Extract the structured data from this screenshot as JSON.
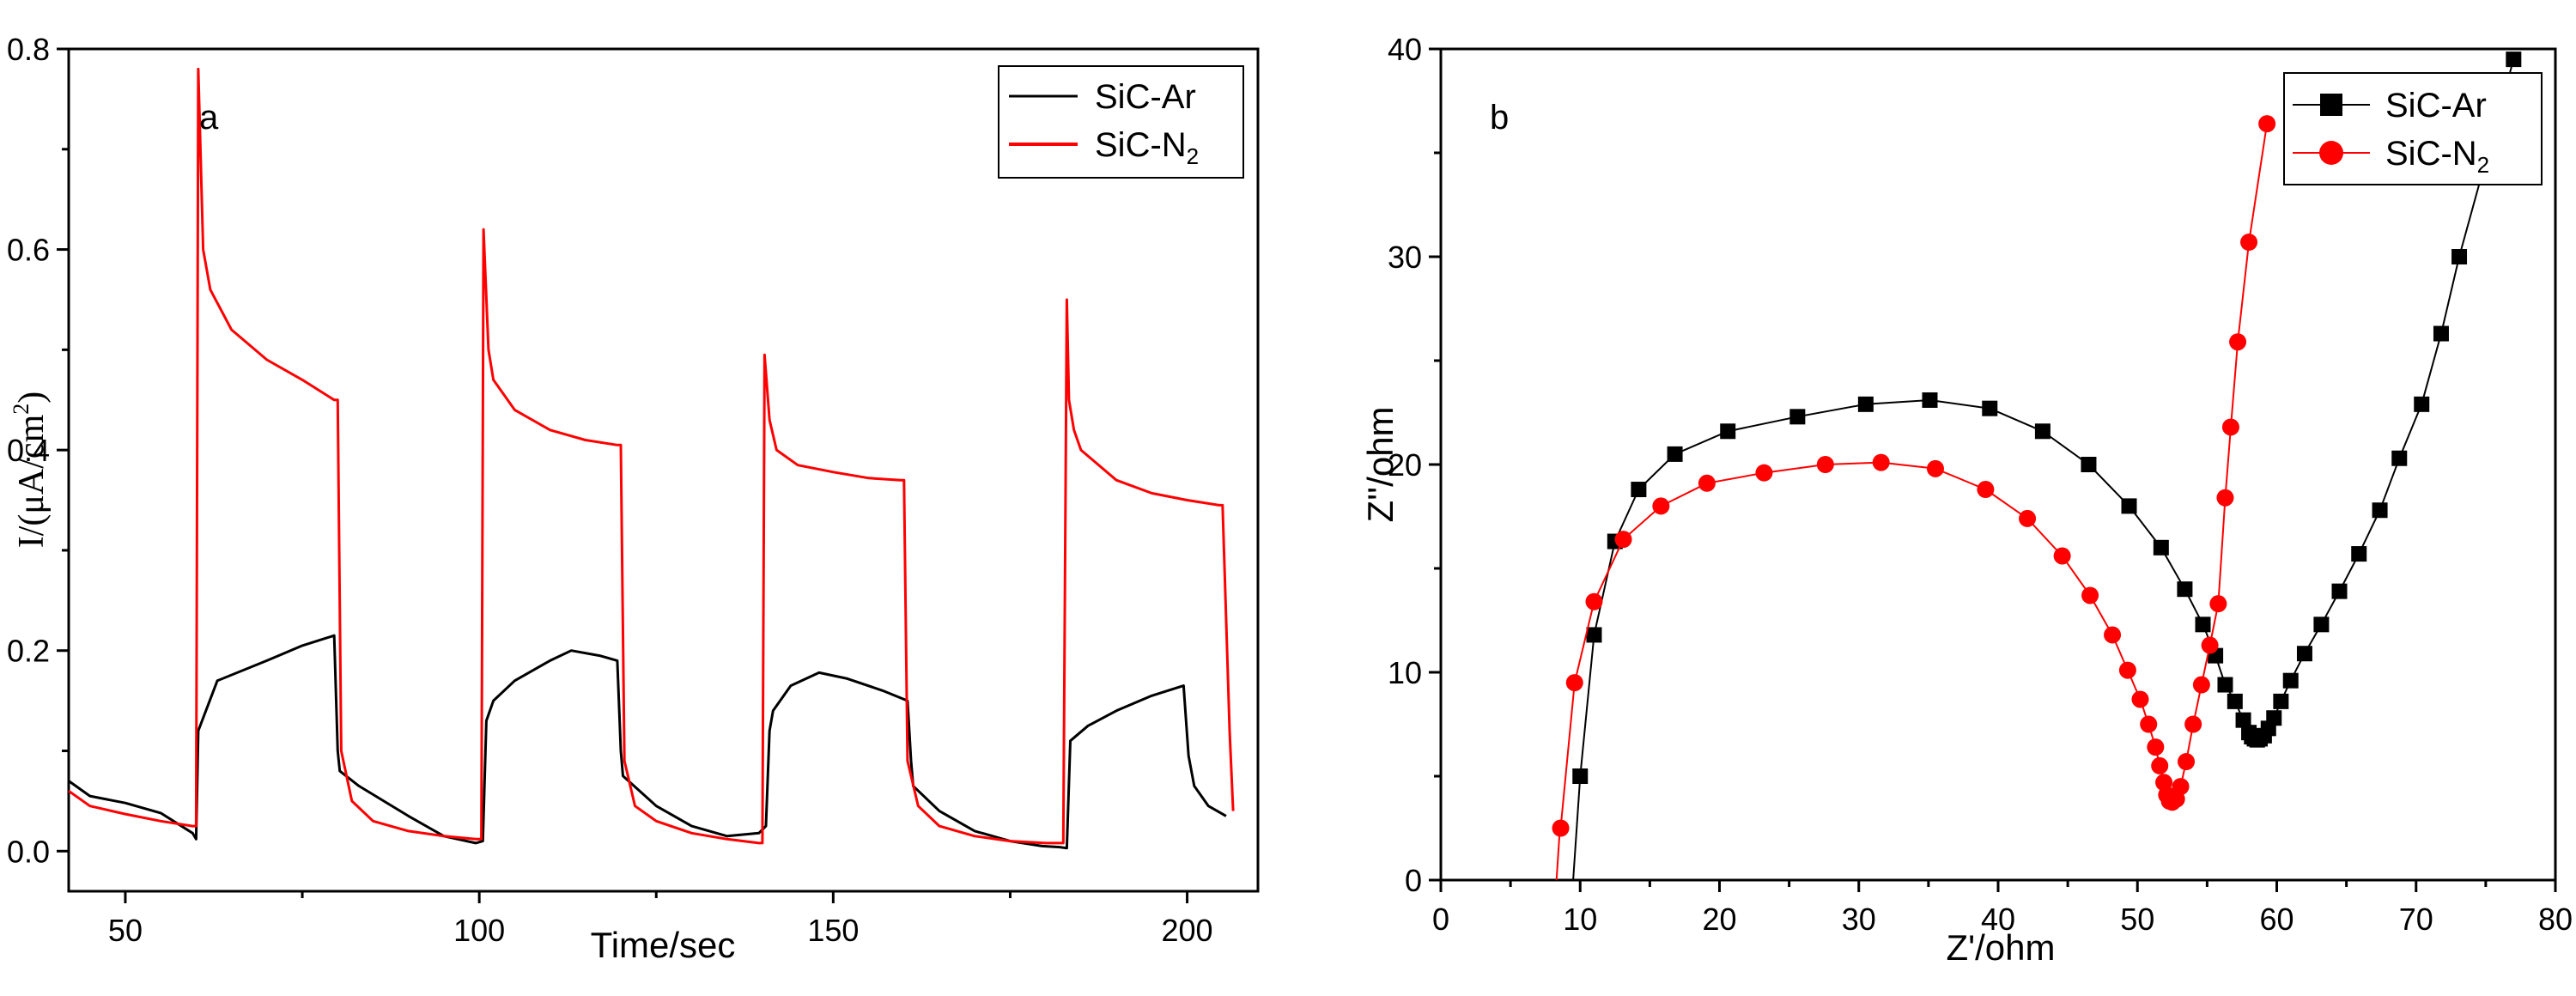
{
  "chart_data": [
    {
      "type": "line",
      "panel_label": "a",
      "title": "",
      "xlabel": "Time/sec",
      "ylabel": {
        "base": "I/(μA/cm",
        "sup": "2",
        "close": ")"
      },
      "xlim": [
        42,
        210
      ],
      "ylim": [
        -0.04,
        0.8
      ],
      "xticks": [
        50,
        100,
        150,
        200
      ],
      "xtick_labels": [
        "50",
        "100",
        "150",
        "200"
      ],
      "yticks": [
        0.0,
        0.2,
        0.4,
        0.6,
        0.8
      ],
      "ytick_labels": [
        "0.0",
        "0.2",
        "0.4",
        "0.6",
        "0.8"
      ],
      "legend_position": "top-right",
      "grid": false,
      "series": [
        {
          "name": "SiC-Ar",
          "legend_base": "SiC-Ar",
          "legend_sub": "",
          "color": "#000000",
          "marker": "none",
          "x": [
            42,
            45,
            50,
            55,
            59.5,
            60,
            60.3,
            63,
            70,
            75,
            79.5,
            80,
            80.3,
            83,
            90,
            95,
            99.5,
            100.5,
            101,
            102,
            105,
            110,
            113,
            117,
            119.5,
            120,
            120.3,
            125,
            130,
            135,
            139.5,
            140.5,
            141,
            141.5,
            144,
            148,
            152,
            157,
            160.5,
            161,
            161.3,
            165,
            170,
            175,
            179.5,
            182,
            183,
            183.5,
            186,
            190,
            195,
            199.5,
            200.2,
            201,
            203,
            205.5
          ],
          "values": [
            0.07,
            0.055,
            0.048,
            0.038,
            0.018,
            0.012,
            0.12,
            0.17,
            0.19,
            0.205,
            0.215,
            0.1,
            0.08,
            0.065,
            0.035,
            0.015,
            0.008,
            0.01,
            0.13,
            0.15,
            0.17,
            0.19,
            0.2,
            0.195,
            0.19,
            0.1,
            0.075,
            0.045,
            0.025,
            0.015,
            0.018,
            0.025,
            0.12,
            0.14,
            0.165,
            0.178,
            0.172,
            0.16,
            0.15,
            0.09,
            0.065,
            0.04,
            0.02,
            0.01,
            0.005,
            0.004,
            0.003,
            0.11,
            0.125,
            0.14,
            0.155,
            0.165,
            0.095,
            0.065,
            0.045,
            0.035
          ]
        },
        {
          "name": "SiC-N2",
          "legend_base": "SiC-N",
          "legend_sub": "2",
          "color": "#ff0000",
          "marker": "none",
          "x": [
            42,
            45,
            50,
            55,
            59.5,
            60,
            60.3,
            61,
            62,
            65,
            70,
            75,
            79.5,
            80,
            80.5,
            82,
            85,
            90,
            95,
            99.5,
            100.3,
            100.6,
            101.3,
            102,
            105,
            110,
            115,
            119.5,
            120,
            120.5,
            122,
            125,
            130,
            135,
            139.5,
            140,
            140.3,
            141,
            142,
            145,
            150,
            155,
            159.5,
            160,
            160.5,
            162,
            165,
            170,
            175,
            180,
            182.5,
            183,
            183.3,
            184,
            185,
            190,
            195,
            200,
            204.5,
            205,
            206,
            206.5
          ],
          "values": [
            0.06,
            0.045,
            0.037,
            0.03,
            0.025,
            0.025,
            0.78,
            0.6,
            0.56,
            0.52,
            0.49,
            0.47,
            0.45,
            0.45,
            0.1,
            0.05,
            0.03,
            0.02,
            0.015,
            0.012,
            0.012,
            0.62,
            0.5,
            0.47,
            0.44,
            0.42,
            0.41,
            0.405,
            0.405,
            0.09,
            0.045,
            0.03,
            0.018,
            0.012,
            0.008,
            0.008,
            0.495,
            0.43,
            0.4,
            0.385,
            0.378,
            0.372,
            0.37,
            0.37,
            0.09,
            0.045,
            0.025,
            0.015,
            0.01,
            0.008,
            0.008,
            0.55,
            0.45,
            0.42,
            0.4,
            0.37,
            0.357,
            0.35,
            0.345,
            0.345,
            0.12,
            0.04
          ]
        }
      ]
    },
    {
      "type": "scatter",
      "panel_label": "b",
      "title": "",
      "xlabel": "Z'/ohm",
      "ylabel": "Z''/ohm",
      "xlim": [
        0,
        80
      ],
      "ylim": [
        0,
        40
      ],
      "xticks": [
        0,
        10,
        20,
        30,
        40,
        50,
        60,
        70,
        80
      ],
      "xtick_labels": [
        "0",
        "10",
        "20",
        "30",
        "40",
        "50",
        "60",
        "70",
        "80"
      ],
      "yticks": [
        0,
        10,
        20,
        30,
        40
      ],
      "ytick_labels": [
        "0",
        "10",
        "20",
        "30",
        "40"
      ],
      "legend_position": "top-right",
      "grid": false,
      "series": [
        {
          "name": "SiC-Ar",
          "legend_base": "SiC-Ar",
          "legend_sub": "",
          "color": "#000000",
          "marker": "square",
          "line_x": [
            9.5,
            10
          ],
          "line_y": [
            0,
            5
          ],
          "x": [
            10,
            11,
            12.5,
            14.2,
            16.8,
            20.6,
            25.6,
            30.5,
            35.1,
            39.4,
            43.2,
            46.5,
            49.4,
            51.7,
            53.4,
            54.7,
            55.6,
            56.3,
            57,
            57.6,
            58,
            58.2,
            58.4,
            58.6,
            58.8,
            59.1,
            59.4,
            59.8,
            60.3,
            61,
            62,
            63.2,
            64.5,
            65.9,
            67.4,
            68.8,
            70.4,
            71.8,
            73.1,
            77
          ],
          "values": [
            5,
            11.8,
            16.3,
            18.8,
            20.5,
            21.6,
            22.3,
            22.9,
            23.1,
            22.7,
            21.6,
            20,
            18,
            16,
            14,
            12.3,
            10.8,
            9.4,
            8.6,
            7.7,
            7.1,
            6.9,
            6.8,
            6.75,
            6.8,
            6.95,
            7.3,
            7.8,
            8.6,
            9.6,
            10.9,
            12.3,
            13.9,
            15.7,
            17.8,
            20.3,
            22.9,
            26.3,
            30,
            39.5
          ]
        },
        {
          "name": "SiC-N2",
          "legend_base": "SiC-N",
          "legend_sub": "2",
          "color": "#ff0000",
          "marker": "circle",
          "line_x": [
            8.3,
            8.55
          ],
          "line_y": [
            0,
            2.5
          ],
          "x": [
            8.6,
            9.6,
            11,
            13.1,
            15.8,
            19.1,
            23.2,
            27.6,
            31.6,
            35.5,
            39.1,
            42.1,
            44.6,
            46.6,
            48.2,
            49.3,
            50.2,
            50.8,
            51.3,
            51.6,
            51.9,
            52.1,
            52.3,
            52.5,
            52.8,
            53.1,
            53.5,
            54,
            54.6,
            55.2,
            55.8,
            56.3,
            56.7,
            57.2,
            58,
            59.3
          ],
          "values": [
            2.5,
            9.5,
            13.4,
            16.4,
            18,
            19.1,
            19.6,
            20,
            20.1,
            19.8,
            18.8,
            17.4,
            15.6,
            13.7,
            11.8,
            10.1,
            8.7,
            7.5,
            6.4,
            5.5,
            4.7,
            4.1,
            3.8,
            3.75,
            3.9,
            4.5,
            5.7,
            7.5,
            9.4,
            11.3,
            13.3,
            18.4,
            21.8,
            25.9,
            30.7,
            36.4
          ]
        }
      ]
    }
  ]
}
